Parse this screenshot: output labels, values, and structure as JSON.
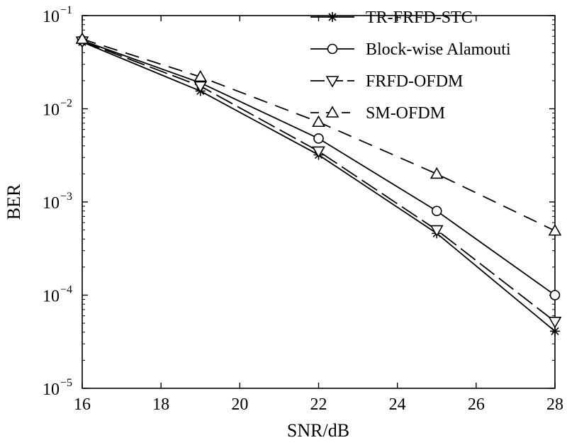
{
  "chart_data": {
    "type": "line",
    "title": "",
    "xlabel": "SNR/dB",
    "ylabel": "BER",
    "xlim": [
      16,
      28
    ],
    "ylim": [
      1e-05,
      0.1
    ],
    "yscale": "log",
    "grid": false,
    "legend_position": "top-right",
    "x_ticks": [
      16,
      18,
      20,
      22,
      24,
      26,
      28
    ],
    "x_tick_labels": [
      "16",
      "18",
      "20",
      "22",
      "24",
      "26",
      "28"
    ],
    "y_ticks": [
      {
        "value": 0.1,
        "base": "10",
        "exp": "−1"
      },
      {
        "value": 0.01,
        "base": "10",
        "exp": "−2"
      },
      {
        "value": 0.001,
        "base": "10",
        "exp": "−3"
      },
      {
        "value": 0.0001,
        "base": "10",
        "exp": "−4"
      },
      {
        "value": 1e-05,
        "base": "10",
        "exp": "−5"
      }
    ],
    "x": [
      16,
      19,
      22,
      25,
      28
    ],
    "series": [
      {
        "name": "TR-FRFD-STC",
        "marker": "star",
        "line": "solid",
        "values": [
          0.052,
          0.0155,
          0.0032,
          0.00046,
          4.1e-05
        ]
      },
      {
        "name": "Block-wise Alamouti",
        "marker": "circle",
        "line": "solid",
        "values": [
          0.054,
          0.019,
          0.0048,
          0.0008,
          0.0001
        ]
      },
      {
        "name": "FRFD-OFDM",
        "marker": "triangle-down",
        "line": "long-dash",
        "values": [
          0.053,
          0.0175,
          0.0035,
          0.0005,
          5.2e-05
        ]
      },
      {
        "name": "SM-OFDM",
        "marker": "triangle-up",
        "line": "dash",
        "values": [
          0.056,
          0.022,
          0.0072,
          0.002,
          0.00049
        ]
      }
    ]
  }
}
